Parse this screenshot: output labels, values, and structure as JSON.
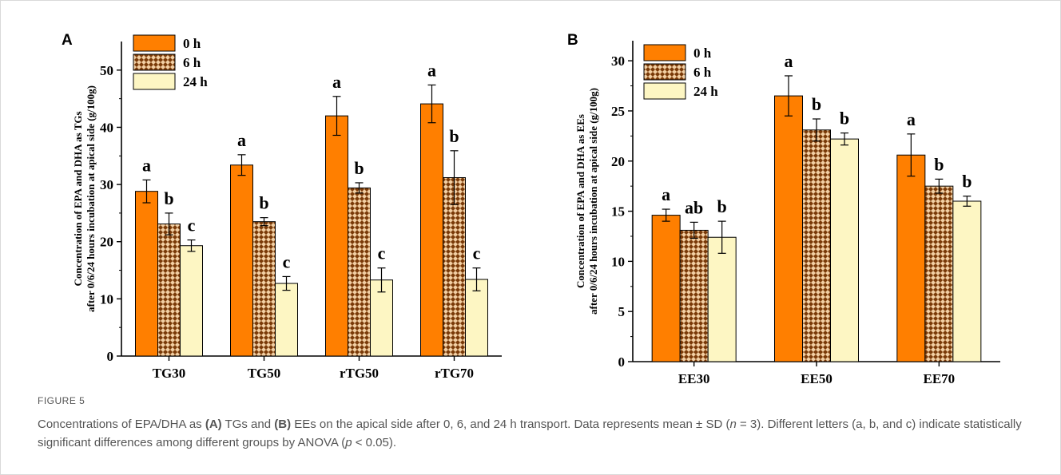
{
  "chart_data": [
    {
      "type": "bar",
      "panel_label": "A",
      "categories": [
        "TG30",
        "TG50",
        "rTG50",
        "rTG70"
      ],
      "ylabel_lines": [
        "Concentration of EPA and DHA as TGs",
        "after 0/6/24 hours incubation  at apical side (g/100g)"
      ],
      "ylim": [
        0,
        55
      ],
      "yticks": [
        0,
        10,
        20,
        30,
        40,
        50
      ],
      "legend": "top-left",
      "series": [
        {
          "name": "0 h",
          "values": [
            28.8,
            33.4,
            42.0,
            44.1
          ],
          "sd": [
            2.0,
            1.8,
            3.4,
            3.3
          ],
          "letters": [
            "a",
            "a",
            "a",
            "a"
          ]
        },
        {
          "name": "6 h",
          "values": [
            23.1,
            23.5,
            29.4,
            31.2
          ],
          "sd": [
            1.9,
            0.7,
            0.9,
            4.7
          ],
          "letters": [
            "b",
            "b",
            "b",
            "b"
          ]
        },
        {
          "name": "24 h",
          "values": [
            19.3,
            12.7,
            13.3,
            13.4
          ],
          "sd": [
            1.0,
            1.2,
            2.1,
            2.0
          ],
          "letters": [
            "c",
            "c",
            "c",
            "c"
          ]
        }
      ]
    },
    {
      "type": "bar",
      "panel_label": "B",
      "categories": [
        "EE30",
        "EE50",
        "EE70"
      ],
      "ylabel_lines": [
        "Concentration of EPA and DHA as EEs",
        "after 0/6/24 hours incubation  at apical side (g/100g)"
      ],
      "ylim": [
        0,
        32
      ],
      "yticks": [
        0,
        5,
        10,
        15,
        20,
        25,
        30
      ],
      "legend": "top-left",
      "series": [
        {
          "name": "0 h",
          "values": [
            14.6,
            26.5,
            20.6
          ],
          "sd": [
            0.6,
            2.0,
            2.1
          ],
          "letters": [
            "a",
            "a",
            "a"
          ]
        },
        {
          "name": "6 h",
          "values": [
            13.1,
            23.1,
            17.5
          ],
          "sd": [
            0.8,
            1.1,
            0.7
          ],
          "letters": [
            "ab",
            "b",
            "b"
          ]
        },
        {
          "name": "24 h",
          "values": [
            12.4,
            22.2,
            16.0
          ],
          "sd": [
            1.6,
            0.6,
            0.5
          ],
          "letters": [
            "b",
            "b",
            "b"
          ]
        }
      ]
    }
  ],
  "colors": {
    "orange": "#ff7f00",
    "hatch_fill": "#f2cfa3",
    "hatch_dot": "#7a3a08",
    "cream": "#fdf6c3"
  },
  "caption": {
    "figure_label": "FIGURE 5",
    "t1": "Concentrations of EPA/DHA as ",
    "b1": "(A)",
    "t2": " TGs and ",
    "b2": "(B)",
    "t3": " EEs on the apical side after 0, 6, and 24 h transport. Data represents mean ± SD (",
    "n": "n",
    "t4": " = 3). Different letters (a, b, and c) indicate statistically significant differences among different groups by ANOVA (",
    "p": "p",
    "t5": " < 0.05)."
  }
}
